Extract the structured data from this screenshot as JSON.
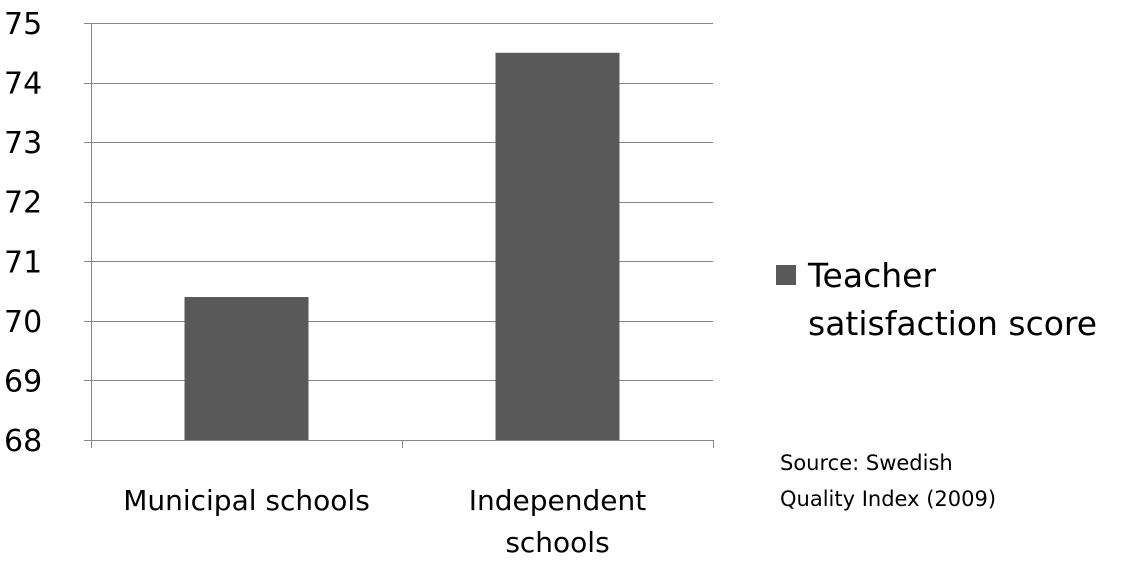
{
  "chart_data": {
    "type": "bar",
    "title": "",
    "xlabel": "",
    "ylabel": "",
    "categories": [
      "Municipal schools",
      "Independent\nschools"
    ],
    "series": [
      {
        "name": "Teacher satisfaction score",
        "values": [
          70.4,
          74.5
        ],
        "color": "#595959"
      }
    ],
    "ylim": [
      68,
      75
    ],
    "yticks": [
      68,
      69,
      70,
      71,
      72,
      73,
      74,
      75
    ],
    "grid": true,
    "legend": "right"
  },
  "legend": {
    "label": "Teacher satisfaction score"
  },
  "source_note": "Source:  Swedish\nQuality  Index (2009)",
  "colors": {
    "bar": "#595959",
    "grid": "#868686",
    "text": "#000000"
  }
}
